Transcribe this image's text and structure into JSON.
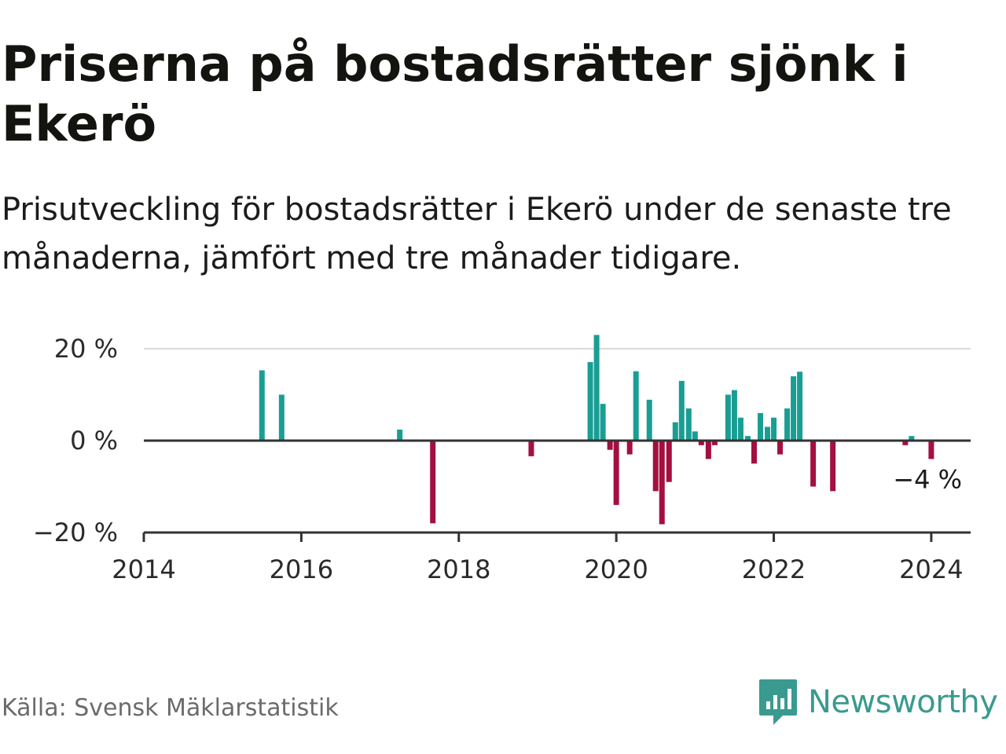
{
  "title": "Priserna på bostadsrätter sjönk i Ekerö",
  "subtitle": "Prisutveckling för bostadsrätter i Ekerö under de senaste tre månaderna, jämfört med tre månader tidigare.",
  "source": "Källa: Svensk Mäklarstatistik",
  "brand": {
    "name": "Newsworthy",
    "icon": "newsworthy-logo-icon",
    "color": "#3a9a8f"
  },
  "colors": {
    "positive": "#1a9e94",
    "negative": "#a3103f",
    "grid": "#d9d9d9",
    "axis": "#333333"
  },
  "chart_data": {
    "type": "bar",
    "ylabel": "",
    "xlabel": "",
    "ylim": [
      -20,
      20
    ],
    "xlim": [
      2014,
      2024.5
    ],
    "y_ticks": [
      {
        "value": 20,
        "label": "20 %"
      },
      {
        "value": 0,
        "label": "0 %"
      },
      {
        "value": -20,
        "label": "−20 %"
      }
    ],
    "x_ticks": [
      {
        "value": 2014,
        "label": "2014"
      },
      {
        "value": 2016,
        "label": "2016"
      },
      {
        "value": 2018,
        "label": "2018"
      },
      {
        "value": 2020,
        "label": "2020"
      },
      {
        "value": 2022,
        "label": "2022"
      },
      {
        "value": 2024,
        "label": "2024"
      }
    ],
    "points": [
      {
        "t": 2015.5,
        "v": 15.3
      },
      {
        "t": 2015.75,
        "v": 10
      },
      {
        "t": 2017.25,
        "v": 2.4
      },
      {
        "t": 2017.67,
        "v": -18
      },
      {
        "t": 2018.92,
        "v": -3.4
      },
      {
        "t": 2019.67,
        "v": 17.1
      },
      {
        "t": 2019.75,
        "v": 23
      },
      {
        "t": 2019.83,
        "v": 8
      },
      {
        "t": 2019.92,
        "v": -2
      },
      {
        "t": 2020.0,
        "v": -14
      },
      {
        "t": 2020.17,
        "v": -3
      },
      {
        "t": 2020.25,
        "v": 15.1
      },
      {
        "t": 2020.42,
        "v": 8.9
      },
      {
        "t": 2020.5,
        "v": -11
      },
      {
        "t": 2020.58,
        "v": -18.2
      },
      {
        "t": 2020.67,
        "v": -9
      },
      {
        "t": 2020.75,
        "v": 4
      },
      {
        "t": 2020.83,
        "v": 13
      },
      {
        "t": 2020.92,
        "v": 7
      },
      {
        "t": 2021.0,
        "v": 2
      },
      {
        "t": 2021.08,
        "v": -1
      },
      {
        "t": 2021.17,
        "v": -4
      },
      {
        "t": 2021.25,
        "v": -1
      },
      {
        "t": 2021.42,
        "v": 10
      },
      {
        "t": 2021.5,
        "v": 11
      },
      {
        "t": 2021.58,
        "v": 5
      },
      {
        "t": 2021.67,
        "v": 1
      },
      {
        "t": 2021.75,
        "v": -5
      },
      {
        "t": 2021.83,
        "v": 6
      },
      {
        "t": 2021.92,
        "v": 3
      },
      {
        "t": 2022.0,
        "v": 5
      },
      {
        "t": 2022.08,
        "v": -3
      },
      {
        "t": 2022.17,
        "v": 7
      },
      {
        "t": 2022.25,
        "v": 14
      },
      {
        "t": 2022.33,
        "v": 15
      },
      {
        "t": 2022.5,
        "v": -10
      },
      {
        "t": 2022.75,
        "v": -11
      },
      {
        "t": 2023.67,
        "v": -1
      },
      {
        "t": 2023.75,
        "v": 1
      },
      {
        "t": 2024.0,
        "v": -4
      }
    ],
    "last_value_label": "−4 %"
  }
}
